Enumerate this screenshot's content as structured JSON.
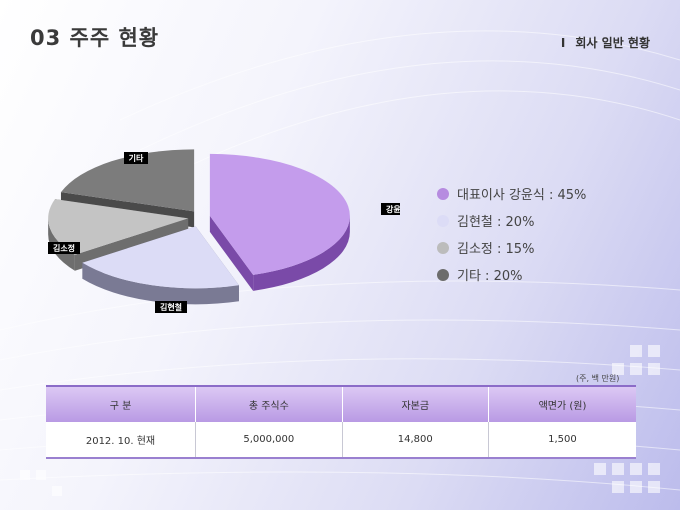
{
  "header": {
    "title": "03  주주 현황",
    "section_roman": "I",
    "section_label": "회사 일반 현황"
  },
  "chart_data": {
    "type": "pie",
    "slices": [
      {
        "label": "강윤식",
        "legend": "대표이사 강윤식 : 45%",
        "value": 45,
        "color": "#c49cec",
        "side": "#7a4aa8"
      },
      {
        "label": "김현철",
        "legend": "김현철 : 20%",
        "value": 20,
        "color": "#dcdcf6",
        "side": "#7a7a94"
      },
      {
        "label": "김소정",
        "legend": "김소정 : 15%",
        "value": 15,
        "color": "#c4c4c4",
        "side": "#6e6e6e"
      },
      {
        "label": "기타",
        "legend": "기타 : 20%",
        "value": 20,
        "color": "#7c7c7c",
        "side": "#4a4a4a"
      }
    ]
  },
  "legend_colors": [
    "#b68be0",
    "#dcdcf6",
    "#bcbcbc",
    "#6c6c6c"
  ],
  "table": {
    "unit_note": "(주, 백 만원)",
    "headers": [
      "구  분",
      "총 주식수",
      "자본금",
      "액면가 (원)"
    ],
    "row": [
      "2012. 10. 현재",
      "5,000,000",
      "14,800",
      "1,500"
    ]
  }
}
